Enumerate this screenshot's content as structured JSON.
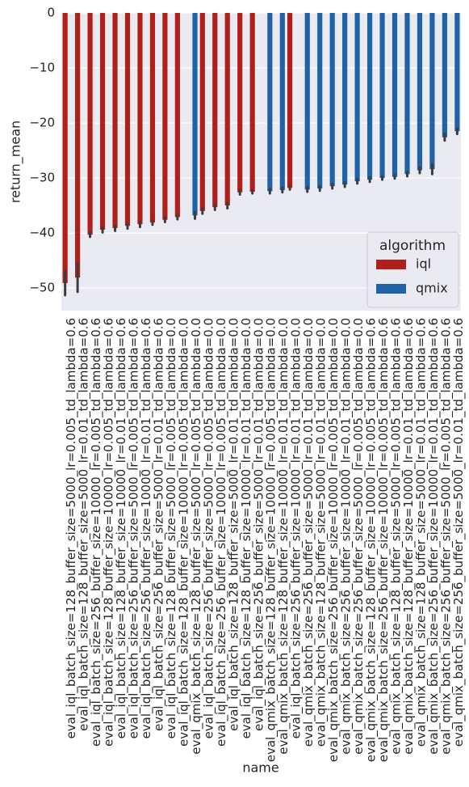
{
  "chart_data": {
    "type": "bar",
    "xlabel": "name",
    "ylabel": "return_mean",
    "categories": [
      "eval_iql_batch_size=128_buffer_size=5000_lr=0.005_td_lambda=0.6",
      "eval_iql_batch_size=128_buffer_size=5000_lr=0.01_td_lambda=0.6",
      "eval_iql_batch_size=256_buffer_size=10000_lr=0.005_td_lambda=0.6",
      "eval_iql_batch_size=128_buffer_size=10000_lr=0.005_td_lambda=0.6",
      "eval_iql_batch_size=128_buffer_size=10000_lr=0.01_td_lambda=0.6",
      "eval_iql_batch_size=256_buffer_size=5000_lr=0.005_td_lambda=0.6",
      "eval_iql_batch_size=256_buffer_size=10000_lr=0.01_td_lambda=0.6",
      "eval_iql_batch_size=256_buffer_size=5000_lr=0.01_td_lambda=0.6",
      "eval_iql_batch_size=128_buffer_size=5000_lr=0.005_td_lambda=0.0",
      "eval_iql_batch_size=128_buffer_size=10000_lr=0.005_td_lambda=0.0",
      "eval_qmix_batch_size=128_buffer_size=5000_lr=0.005_td_lambda=0.0",
      "eval_iql_batch_size=256_buffer_size=5000_lr=0.005_td_lambda=0.0",
      "eval_iql_batch_size=256_buffer_size=10000_lr=0.005_td_lambda=0.0",
      "eval_iql_batch_size=128_buffer_size=5000_lr=0.01_td_lambda=0.0",
      "eval_iql_batch_size=128_buffer_size=10000_lr=0.01_td_lambda=0.0",
      "eval_iql_batch_size=256_buffer_size=5000_lr=0.01_td_lambda=0.0",
      "eval_qmix_batch_size=128_buffer_size=10000_lr=0.005_td_lambda=0.0",
      "eval_qmix_batch_size=128_buffer_size=10000_lr=0.01_td_lambda=0.0",
      "eval_iql_batch_size=256_buffer_size=10000_lr=0.01_td_lambda=0.0",
      "eval_qmix_batch_size=256_buffer_size=5000_lr=0.01_td_lambda=0.0",
      "eval_qmix_batch_size=128_buffer_size=5000_lr=0.01_td_lambda=0.0",
      "eval_qmix_batch_size=256_buffer_size=10000_lr=0.005_td_lambda=0.0",
      "eval_qmix_batch_size=256_buffer_size=10000_lr=0.01_td_lambda=0.0",
      "eval_qmix_batch_size=256_buffer_size=5000_lr=0.005_td_lambda=0.0",
      "eval_qmix_batch_size=128_buffer_size=10000_lr=0.005_td_lambda=0.6",
      "eval_qmix_batch_size=256_buffer_size=10000_lr=0.005_td_lambda=0.6",
      "eval_qmix_batch_size=128_buffer_size=5000_lr=0.005_td_lambda=0.6",
      "eval_qmix_batch_size=128_buffer_size=10000_lr=0.01_td_lambda=0.6",
      "eval_qmix_batch_size=128_buffer_size=5000_lr=0.01_td_lambda=0.6",
      "eval_qmix_batch_size=256_buffer_size=10000_lr=0.01_td_lambda=0.6",
      "eval_qmix_batch_size=256_buffer_size=5000_lr=0.005_td_lambda=0.6",
      "eval_qmix_batch_size=256_buffer_size=5000_lr=0.01_td_lambda=0.6"
    ],
    "series": [
      {
        "name": "iql",
        "color": "#b01f1a",
        "values": [
          -49.1,
          -48.1,
          -40.3,
          -39.4,
          -39.1,
          -38.7,
          -38.4,
          -38.1,
          -37.6,
          -37.1,
          null,
          -36.0,
          -35.3,
          -35.0,
          -32.6,
          -32.5,
          null,
          null,
          -31.8,
          null,
          null,
          null,
          null,
          null,
          null,
          null,
          null,
          null,
          null,
          null,
          null,
          null
        ],
        "errors": [
          2.2,
          2.6,
          0.4,
          0.5,
          0.5,
          0.5,
          0.5,
          0.4,
          0.4,
          0.4,
          null,
          0.5,
          0.5,
          0.5,
          0.4,
          0.3,
          null,
          null,
          0.3,
          null,
          null,
          null,
          null,
          null,
          null,
          null,
          null,
          null,
          null,
          null,
          null,
          null
        ]
      },
      {
        "name": "qmix",
        "color": "#1f62a8",
        "values": [
          null,
          null,
          null,
          null,
          null,
          null,
          null,
          null,
          null,
          null,
          -36.8,
          null,
          null,
          null,
          null,
          null,
          -32.4,
          -32.2,
          null,
          -32.1,
          -31.9,
          -31.5,
          -31.2,
          -30.6,
          -30.3,
          -30.0,
          -29.8,
          -29.3,
          -28.6,
          -28.4,
          -22.6,
          -21.5
        ],
        "errors": [
          null,
          null,
          null,
          null,
          null,
          null,
          null,
          null,
          null,
          null,
          0.6,
          null,
          null,
          null,
          null,
          null,
          0.4,
          0.4,
          null,
          0.4,
          0.4,
          0.4,
          0.4,
          0.4,
          0.4,
          0.3,
          0.3,
          0.4,
          0.5,
          0.9,
          0.6,
          0.5
        ]
      }
    ],
    "ylim": [
      -54.1,
      0
    ],
    "yticks": [
      0,
      {
        "value": -10,
        "label": "−10"
      },
      {
        "value": -20,
        "label": "−20"
      },
      {
        "value": -30,
        "label": "−30"
      },
      {
        "value": -40,
        "label": "−40"
      },
      {
        "value": -50,
        "label": "−50"
      }
    ],
    "grid": true,
    "legend_title": "algorithm",
    "legend_position": "lower right"
  }
}
